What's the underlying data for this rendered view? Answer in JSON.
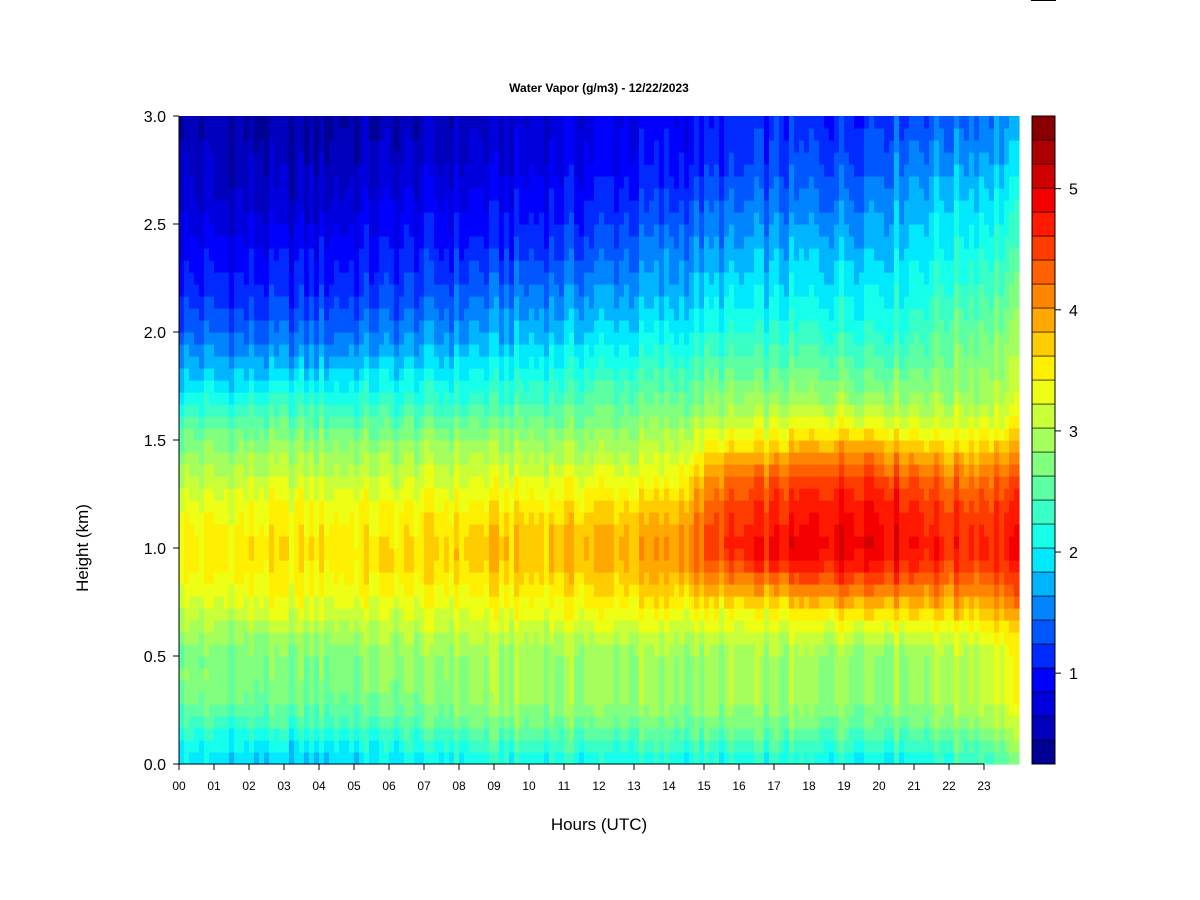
{
  "chart_data": {
    "type": "heatmap",
    "title": "Water Vapor (g/m3) - 12/22/2023",
    "xlabel": "Hours (UTC)",
    "ylabel": "Height (km)",
    "x_tick_labels": [
      "00",
      "01",
      "02",
      "03",
      "04",
      "05",
      "06",
      "07",
      "08",
      "09",
      "10",
      "11",
      "12",
      "13",
      "14",
      "15",
      "16",
      "17",
      "18",
      "19",
      "20",
      "21",
      "22",
      "23"
    ],
    "y_tick_labels": [
      "0.0",
      "0.5",
      "1.0",
      "1.5",
      "2.0",
      "2.5",
      "3.0"
    ],
    "y_tick_values": [
      0.0,
      0.5,
      1.0,
      1.5,
      2.0,
      2.5,
      3.0
    ],
    "xlim": [
      0,
      24
    ],
    "ylim": [
      0,
      3.0
    ],
    "colorbar": {
      "range": [
        0.25,
        5.6
      ],
      "tick_labels": [
        "1",
        "2",
        "3",
        "4",
        "5"
      ],
      "tick_values": [
        1,
        2,
        3,
        4,
        5
      ],
      "level_step": 0.2
    },
    "color_stops": [
      "#000080",
      "#0000c8",
      "#0000ff",
      "#0050ff",
      "#00a0ff",
      "#00ffff",
      "#40ffc0",
      "#80ff80",
      "#c0ff40",
      "#ffff00",
      "#ffc000",
      "#ff8000",
      "#ff4000",
      "#ff0000",
      "#c00000",
      "#800000"
    ],
    "field_profile": {
      "height_km": [
        0.0,
        0.1,
        0.2,
        0.3,
        0.4,
        0.5,
        0.6,
        0.7,
        0.8,
        0.9,
        1.0,
        1.1,
        1.2,
        1.3,
        1.4,
        1.5,
        1.6,
        1.7,
        1.8,
        1.9,
        2.0,
        2.2,
        2.4,
        2.6,
        2.8,
        3.0
      ],
      "vapor_by_hour": {
        "hours": [
          0,
          3,
          6,
          9,
          12,
          14,
          15.5,
          17,
          18.5,
          19.5,
          20.5,
          22,
          23.9
        ],
        "profiles": [
          [
            1.9,
            2.2,
            2.4,
            2.7,
            2.8,
            2.7,
            2.9,
            3.1,
            3.3,
            3.5,
            3.5,
            3.4,
            3.3,
            3.1,
            2.9,
            2.7,
            2.4,
            2.1,
            1.8,
            1.6,
            1.4,
            1.1,
            0.9,
            0.7,
            0.6,
            0.5
          ],
          [
            1.8,
            2.0,
            2.4,
            2.6,
            2.7,
            2.7,
            2.9,
            3.2,
            3.4,
            3.5,
            3.6,
            3.5,
            3.4,
            3.2,
            3.0,
            2.8,
            2.5,
            2.2,
            1.9,
            1.6,
            1.4,
            1.1,
            0.9,
            0.6,
            0.5,
            0.4
          ],
          [
            1.9,
            2.2,
            2.5,
            2.7,
            2.8,
            2.8,
            3.0,
            3.2,
            3.4,
            3.6,
            3.6,
            3.5,
            3.4,
            3.2,
            3.0,
            2.8,
            2.5,
            2.2,
            2.0,
            1.7,
            1.5,
            1.2,
            1.0,
            0.8,
            0.6,
            0.5
          ],
          [
            2.1,
            2.4,
            2.7,
            2.9,
            2.9,
            2.9,
            3.1,
            3.3,
            3.5,
            3.7,
            3.8,
            3.7,
            3.5,
            3.3,
            3.1,
            2.9,
            2.6,
            2.3,
            2.1,
            1.9,
            1.7,
            1.4,
            1.1,
            0.9,
            0.7,
            0.6
          ],
          [
            2.1,
            2.4,
            2.7,
            2.9,
            2.9,
            2.9,
            3.1,
            3.4,
            3.6,
            3.8,
            3.9,
            3.8,
            3.6,
            3.4,
            3.1,
            2.9,
            2.7,
            2.5,
            2.3,
            2.1,
            1.9,
            1.6,
            1.3,
            1.1,
            0.9,
            0.8
          ],
          [
            2.1,
            2.4,
            2.7,
            2.9,
            2.9,
            2.9,
            3.1,
            3.4,
            3.7,
            3.9,
            4.0,
            3.9,
            3.7,
            3.4,
            3.2,
            3.0,
            2.8,
            2.6,
            2.4,
            2.2,
            2.0,
            1.7,
            1.5,
            1.2,
            1.0,
            0.9
          ],
          [
            2.1,
            2.4,
            2.7,
            2.9,
            2.9,
            2.9,
            3.1,
            3.4,
            3.8,
            4.3,
            4.6,
            4.5,
            4.4,
            4.2,
            3.9,
            3.4,
            3.0,
            2.8,
            2.6,
            2.4,
            2.2,
            1.9,
            1.6,
            1.4,
            1.1,
            1.0
          ],
          [
            2.1,
            2.4,
            2.7,
            2.9,
            2.9,
            2.9,
            3.1,
            3.4,
            3.9,
            4.5,
            4.9,
            4.7,
            4.6,
            4.4,
            4.0,
            3.5,
            3.1,
            2.8,
            2.6,
            2.4,
            2.2,
            1.9,
            1.7,
            1.4,
            1.2,
            1.1
          ],
          [
            2.1,
            2.4,
            2.7,
            2.9,
            2.9,
            2.9,
            3.2,
            3.6,
            4.2,
            4.7,
            5.0,
            4.9,
            4.8,
            4.6,
            4.3,
            3.8,
            3.3,
            2.9,
            2.7,
            2.5,
            2.3,
            2.0,
            1.8,
            1.5,
            1.3,
            1.1
          ],
          [
            2.1,
            2.4,
            2.7,
            2.9,
            2.9,
            2.9,
            3.2,
            3.7,
            4.3,
            4.8,
            5.1,
            5.0,
            4.9,
            4.7,
            4.4,
            3.9,
            3.3,
            2.9,
            2.7,
            2.5,
            2.3,
            2.1,
            1.8,
            1.6,
            1.3,
            1.2
          ],
          [
            2.1,
            2.4,
            2.7,
            2.9,
            2.9,
            2.9,
            3.2,
            3.7,
            4.2,
            4.7,
            5.0,
            4.9,
            4.8,
            4.6,
            4.2,
            3.7,
            3.2,
            2.9,
            2.7,
            2.5,
            2.3,
            2.1,
            1.9,
            1.7,
            1.5,
            1.3
          ],
          [
            2.2,
            2.5,
            2.8,
            3.0,
            3.0,
            3.0,
            3.3,
            3.7,
            4.1,
            4.5,
            4.7,
            4.6,
            4.5,
            4.3,
            4.0,
            3.5,
            3.2,
            2.9,
            2.8,
            2.7,
            2.6,
            2.3,
            2.1,
            1.9,
            1.6,
            1.4
          ],
          [
            2.6,
            2.8,
            3.1,
            3.3,
            3.3,
            3.3,
            3.5,
            3.9,
            4.3,
            4.6,
            4.8,
            4.7,
            4.6,
            4.4,
            4.1,
            3.7,
            3.3,
            3.1,
            3.0,
            2.9,
            2.8,
            2.6,
            2.3,
            2.1,
            1.8,
            1.6
          ]
        ]
      }
    }
  }
}
